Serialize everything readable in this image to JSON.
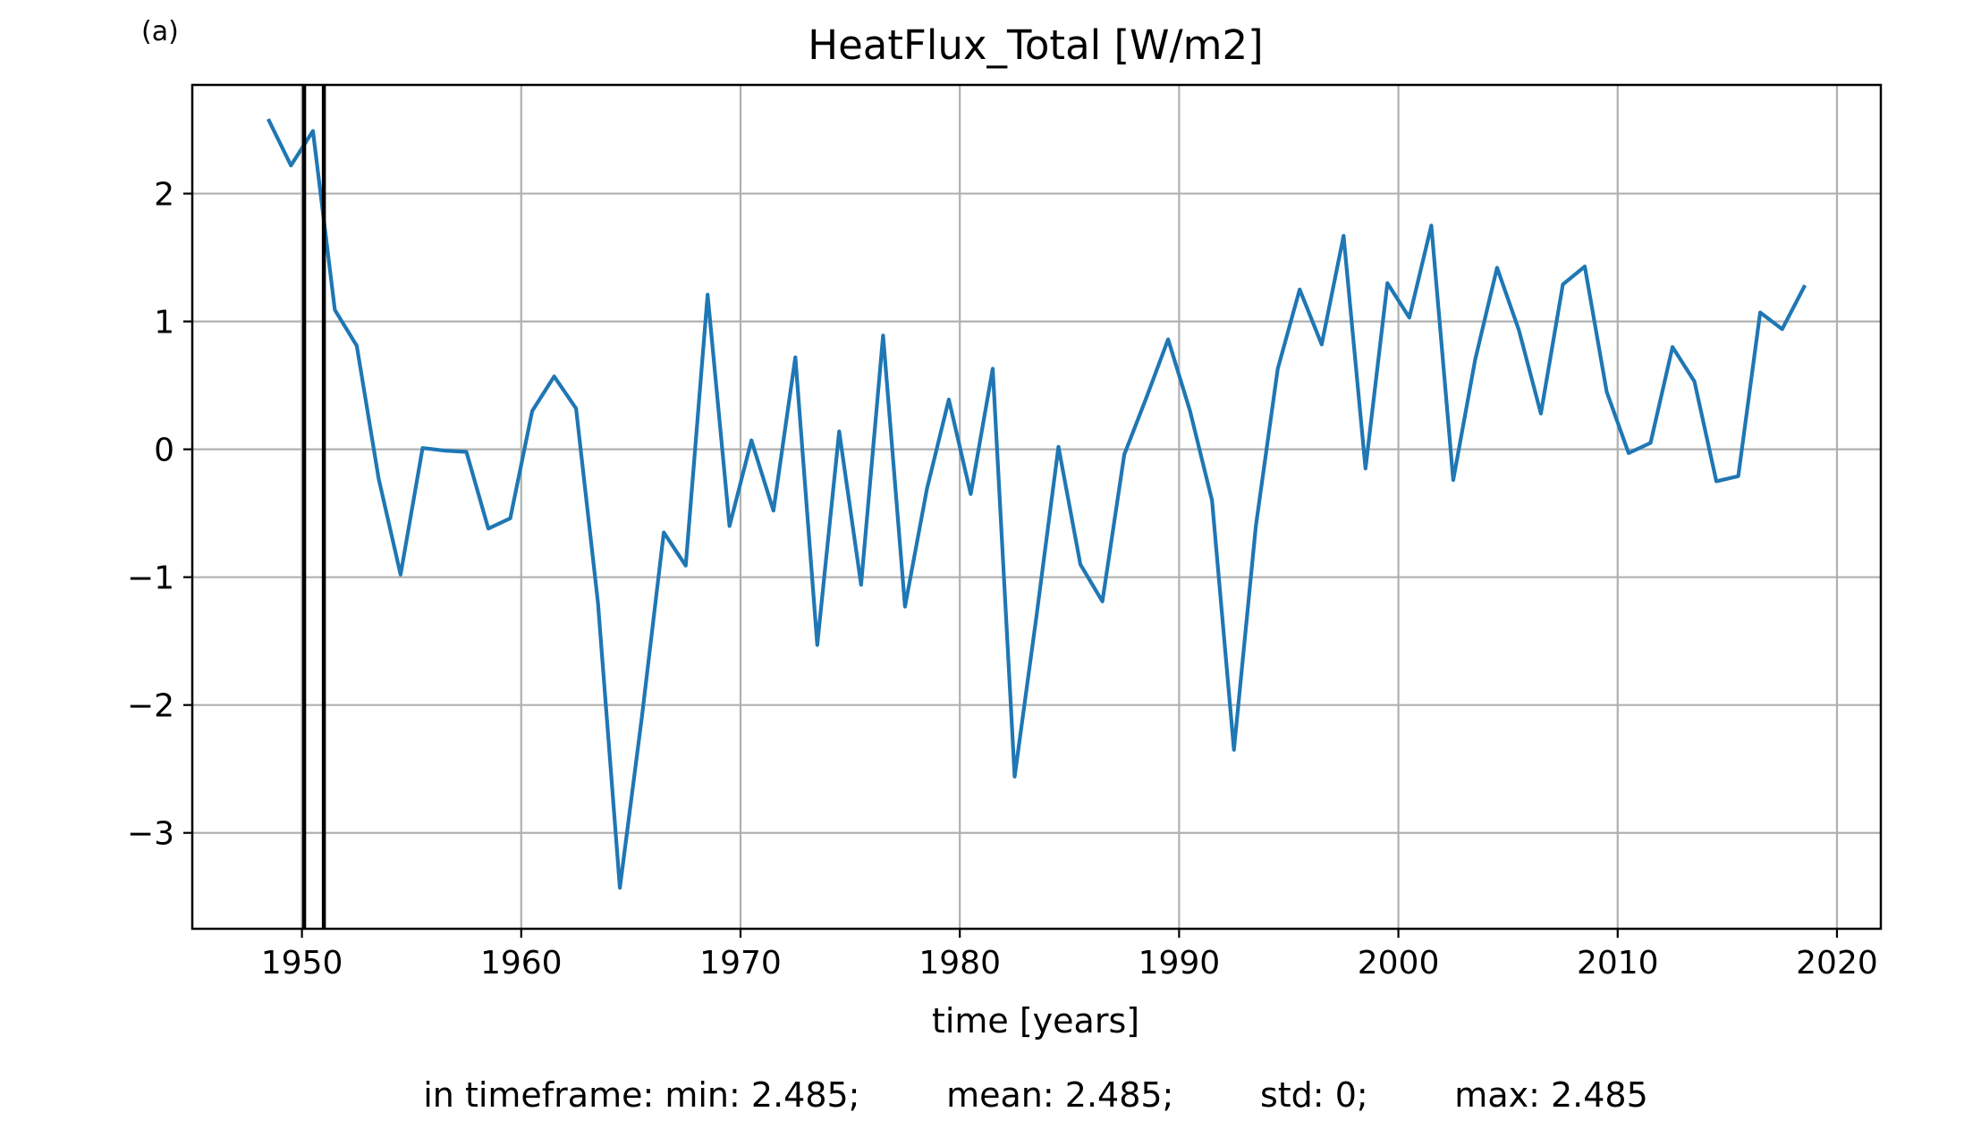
{
  "chart_data": {
    "type": "line",
    "panel_label": "(a)",
    "title": "HeatFlux_Total [W/m2]",
    "xlabel": "time [years]",
    "ylabel": "",
    "xlim": [
      1945,
      2022
    ],
    "ylim": [
      -3.75,
      2.85
    ],
    "xticks": [
      1950,
      1960,
      1970,
      1980,
      1990,
      2000,
      2010,
      2020
    ],
    "xtick_labels": [
      "1950",
      "1960",
      "1970",
      "1980",
      "1990",
      "2000",
      "2010",
      "2020"
    ],
    "yticks": [
      2,
      1,
      0,
      -1,
      -2,
      -3
    ],
    "ytick_labels": [
      "2",
      "1",
      "0",
      "−1",
      "−2",
      "−3"
    ],
    "grid": true,
    "line_color": "#1f77b4",
    "vlines": [
      1950.1,
      1951.0
    ],
    "vline_color": "#000000",
    "series": [
      {
        "x": [
          1948.5,
          1949.5,
          1950.5,
          1951.5,
          1952.5,
          1953.5,
          1954.5,
          1955.5,
          1956.5,
          1957.5,
          1958.5,
          1959.5,
          1960.5,
          1961.5,
          1962.5,
          1963.5,
          1964.5,
          1965.5,
          1966.5,
          1967.5,
          1968.5,
          1969.5,
          1970.5,
          1971.5,
          1972.5,
          1973.5,
          1974.5,
          1975.5,
          1976.5,
          1977.5,
          1978.5,
          1979.5,
          1980.5,
          1981.5,
          1982.5,
          1983.5,
          1984.5,
          1985.5,
          1986.5,
          1987.5,
          1988.5,
          1989.5,
          1990.5,
          1991.5,
          1992.5,
          1993.5,
          1994.5,
          1995.5,
          1996.5,
          1997.5,
          1998.5,
          1999.5,
          2000.5,
          2001.5,
          2002.5,
          2003.5,
          2004.5,
          2005.5,
          2006.5,
          2007.5,
          2008.5,
          2009.5,
          2010.5,
          2011.5,
          2012.5,
          2013.5,
          2014.5,
          2015.5,
          2016.5,
          2017.5,
          2018.5
        ],
        "values": [
          2.57,
          2.22,
          2.49,
          1.09,
          0.81,
          -0.23,
          -0.98,
          0.01,
          -0.01,
          -0.02,
          -0.62,
          -0.54,
          0.3,
          0.57,
          0.32,
          -1.2,
          -3.43,
          -2.1,
          -0.65,
          -0.91,
          1.21,
          -0.6,
          0.07,
          -0.48,
          0.72,
          -1.53,
          0.14,
          -1.06,
          0.89,
          -1.23,
          -0.31,
          0.39,
          -0.35,
          0.63,
          -2.56,
          -1.3,
          0.02,
          -0.9,
          -1.19,
          -0.04,
          0.4,
          0.86,
          0.3,
          -0.4,
          -2.35,
          -0.6,
          0.63,
          1.25,
          0.82,
          1.67,
          -0.15,
          1.3,
          1.03,
          1.75,
          -0.24,
          0.7,
          1.42,
          0.93,
          0.28,
          1.29,
          1.43,
          0.45,
          -0.03,
          0.05,
          0.8,
          0.53,
          -0.25,
          -0.21,
          1.07,
          0.94,
          1.27
        ]
      }
    ],
    "stats_text": "in timeframe: min: 2.485;        mean: 2.485;        std: 0;        max: 2.485"
  }
}
